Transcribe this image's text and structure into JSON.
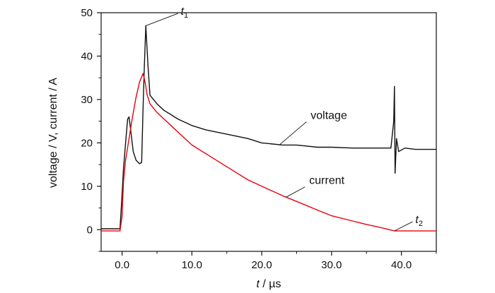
{
  "chart_data": {
    "type": "line",
    "xlabel_var": "t",
    "xlabel_unit": " / µs",
    "ylabel": "voltage / V, current / A",
    "xlim": [
      -3.0,
      45.0
    ],
    "ylim": [
      -5,
      50
    ],
    "x_ticks": [
      {
        "value": 0,
        "label": "0.0"
      },
      {
        "value": 10,
        "label": "10.0"
      },
      {
        "value": 20,
        "label": "20.0"
      },
      {
        "value": 30,
        "label": "30.0"
      },
      {
        "value": 40,
        "label": "40.0"
      }
    ],
    "y_ticks": [
      {
        "value": 0,
        "label": "0"
      },
      {
        "value": 10,
        "label": "10"
      },
      {
        "value": 20,
        "label": "20"
      },
      {
        "value": 30,
        "label": "30"
      },
      {
        "value": 40,
        "label": "40"
      },
      {
        "value": 50,
        "label": "50"
      }
    ],
    "grid": false,
    "legend": "none",
    "series": [
      {
        "name": "voltage",
        "color": "#111111",
        "x": [
          -3.0,
          -0.3,
          0.0,
          0.2,
          0.5,
          0.8,
          1.0,
          1.3,
          1.6,
          2.0,
          2.5,
          2.8,
          3.0,
          3.2,
          3.4,
          3.7,
          4.0,
          5.0,
          6.0,
          7.0,
          8.0,
          10.0,
          12.0,
          15.0,
          18.0,
          20.0,
          23.0,
          25.0,
          28.0,
          30.0,
          33.0,
          35.0,
          37.0,
          38.5,
          38.9,
          39.0,
          39.1,
          39.3,
          39.6,
          40.5,
          42.0,
          45.0
        ],
        "y": [
          0.2,
          0.2,
          8.0,
          14.0,
          20.0,
          25.5,
          26.0,
          22.0,
          18.0,
          16.0,
          15.2,
          15.5,
          28.0,
          38.0,
          47.0,
          38.0,
          31.0,
          29.0,
          27.5,
          26.5,
          25.5,
          24.0,
          23.0,
          22.0,
          21.0,
          20.0,
          19.5,
          19.5,
          19.0,
          19.0,
          18.8,
          18.8,
          18.8,
          18.8,
          25.0,
          33.0,
          13.0,
          21.0,
          18.0,
          18.8,
          18.5,
          18.5
        ]
      },
      {
        "name": "current",
        "color": "#e8000b",
        "x": [
          -3.0,
          -0.3,
          0.0,
          0.2,
          0.5,
          1.0,
          1.5,
          2.0,
          2.5,
          3.0,
          3.3,
          3.6,
          4.0,
          5.0,
          6.0,
          7.0,
          8.0,
          10.0,
          12.0,
          15.0,
          18.0,
          20.0,
          23.0,
          25.0,
          28.0,
          30.0,
          33.0,
          35.0,
          37.0,
          39.0,
          41.0,
          45.0
        ],
        "y": [
          -0.3,
          -0.3,
          3.0,
          11.0,
          16.0,
          21.0,
          26.0,
          30.5,
          34.0,
          36.0,
          34.0,
          31.0,
          29.0,
          27.0,
          25.5,
          24.0,
          22.5,
          19.5,
          17.5,
          14.5,
          11.5,
          10.0,
          7.8,
          6.5,
          4.5,
          3.2,
          2.0,
          1.2,
          0.5,
          -0.3,
          -0.3,
          -0.3
        ]
      }
    ],
    "annotations": [
      {
        "name": "voltage",
        "point": [
          22.5,
          19.5
        ],
        "label_at": [
          27.0,
          25.5
        ]
      },
      {
        "name": "current",
        "point": [
          23.5,
          7.5
        ],
        "label_at": [
          26.8,
          10.5
        ]
      },
      {
        "name": "t1",
        "text": "t",
        "sub": "1",
        "point": [
          3.4,
          47.0
        ],
        "label_at": [
          8.4,
          49.5
        ]
      },
      {
        "name": "t2",
        "text": "t",
        "sub": "2",
        "point": [
          39.0,
          -0.3
        ],
        "label_at": [
          42.0,
          1.5
        ]
      }
    ]
  }
}
